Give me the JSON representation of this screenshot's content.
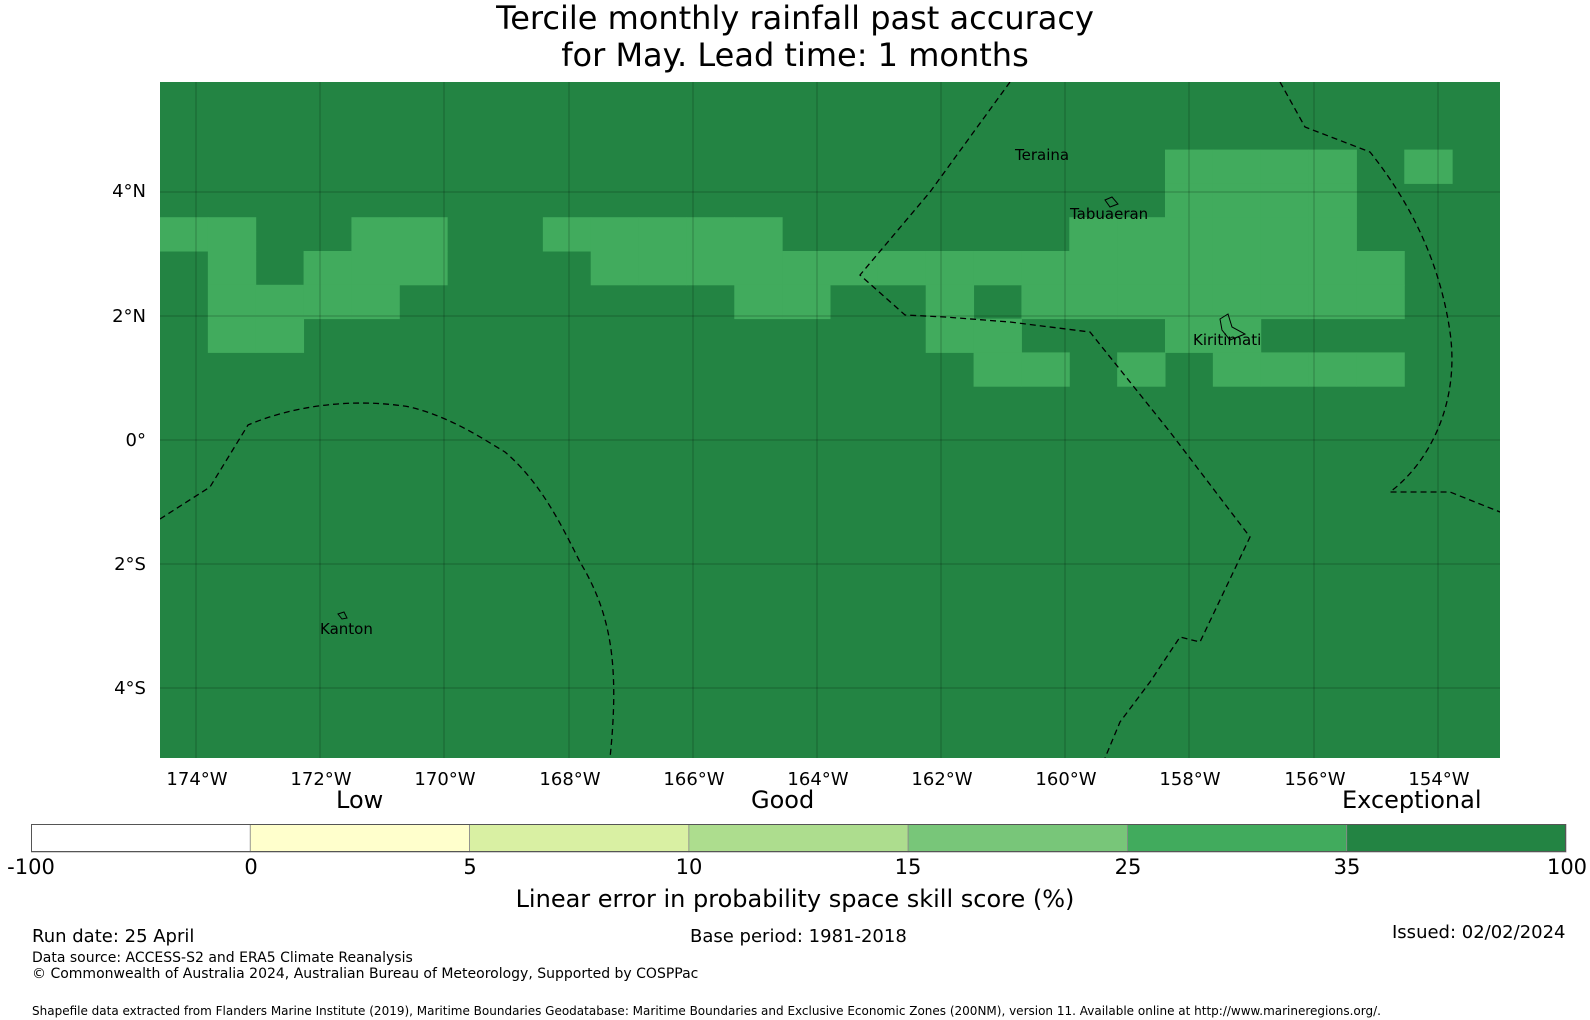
{
  "title": {
    "line1": "Tercile monthly rainfall past accuracy",
    "line2": "for May. Lead time: 1 months"
  },
  "map": {
    "lat_ticks": [
      "4°N",
      "2°N",
      "0°",
      "2°S",
      "4°S"
    ],
    "lon_ticks": [
      "174°W",
      "172°W",
      "170°W",
      "168°W",
      "166°W",
      "164°W",
      "162°W",
      "160°W",
      "158°W",
      "156°W",
      "154°W"
    ],
    "places": [
      "Teraina",
      "Tabuaeran",
      "Kiritimati",
      "Kanton"
    ],
    "colors": {
      "c35_100": "#238443",
      "c25_35": "#41ab5d",
      "c15_25": "#78c679",
      "c10_15": "#addd8e",
      "c5_10": "#d9f0a3",
      "c0_5": "#ffffcc",
      "c_neg": "#ffffff"
    },
    "grid_codes": [
      "6666666666666666666666666666",
      "6666666666666666666666666666",
      "6666666666666666666665555656",
      "6666666666666666666665555666",
      "5566556655555666666555555666",
      "6565556665555555555555555566",
      "6555566666665566565555555566",
      "6556666666666666556665566666",
      "6666666666666666655656555566",
      "6666666666666666666666666666",
      "6666666666666666666666666666",
      "6666666666666666666666666666",
      "6666666666666666666666666666",
      "6666666666666666666666666666",
      "6666666666666666666666666666",
      "6666666666666666666666666666",
      "6666666666666666666666666666",
      "6666666666666666666666666666",
      "6666666666666666666666666666",
      "6666666666666666666666666666"
    ]
  },
  "colorbar": {
    "categories": [
      "Low",
      "Good",
      "Exceptional"
    ],
    "ticks": [
      "-100",
      "0",
      "5",
      "10",
      "15",
      "25",
      "35",
      "100"
    ],
    "title": "Linear error in probability space skill score (%)"
  },
  "footer": {
    "run_date": "Run date: 25 April",
    "base_period": "Base period: 1981-2018",
    "issued": "Issued: 02/02/2024",
    "data_source": "Data source: ACCESS-S2 and ERA5 Climate Reanalysis",
    "copyright": "© Commonwealth of Australia 2024, Australian Bureau of Meteorology, Supported by COSPPac",
    "shapefile": "Shapefile data extracted from Flanders Marine Institute (2019), Maritime Boundaries Geodatabase: Maritime Boundaries and Exclusive Economic Zones (200NM), version 11. Available online at http://www.marineregions.org/."
  }
}
